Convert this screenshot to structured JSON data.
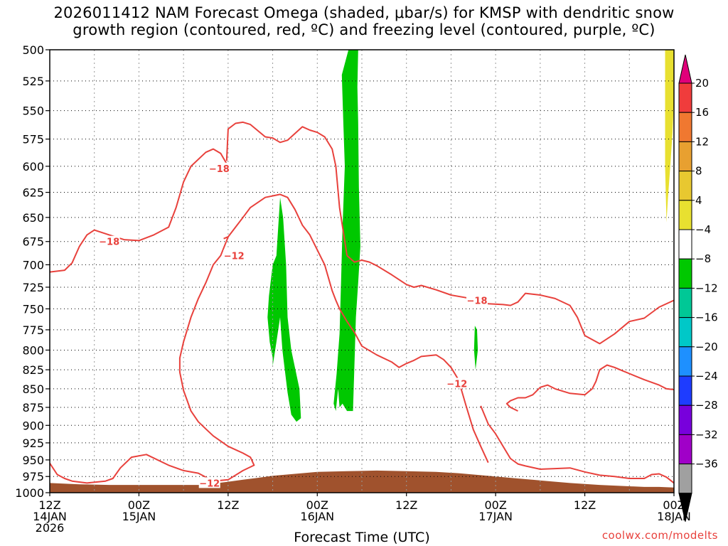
{
  "chart_data": {
    "type": "heatmap",
    "title_line1": "2026011412 NAM Forecast Omega (shaded, μbar/s) for KMSP with dendritic snow",
    "title_line2": "growth region (contoured, red, ºC) and freezing level (contoured, purple, ºC)",
    "xlabel": "Forecast Time (UTC)",
    "credit": "coolwx.com/modelts",
    "y_ticks": [
      "500",
      "525",
      "550",
      "575",
      "600",
      "625",
      "650",
      "675",
      "700",
      "725",
      "750",
      "775",
      "800",
      "825",
      "850",
      "875",
      "900",
      "925",
      "950",
      "975",
      "1000"
    ],
    "y_values": [
      500,
      525,
      550,
      575,
      600,
      625,
      650,
      675,
      700,
      725,
      750,
      775,
      800,
      825,
      850,
      875,
      900,
      925,
      950,
      975,
      1000
    ],
    "ylim": [
      1000,
      500
    ],
    "xlim_hours": [
      0,
      84
    ],
    "x_ticks": [
      {
        "hour": 0,
        "line1": "12Z",
        "line2": "14JAN",
        "line3": "2026"
      },
      {
        "hour": 12,
        "line1": "00Z",
        "line2": "15JAN",
        "line3": ""
      },
      {
        "hour": 24,
        "line1": "12Z",
        "line2": "",
        "line3": ""
      },
      {
        "hour": 36,
        "line1": "00Z",
        "line2": "16JAN",
        "line3": ""
      },
      {
        "hour": 48,
        "line1": "12Z",
        "line2": "",
        "line3": ""
      },
      {
        "hour": 60,
        "line1": "00Z",
        "line2": "17JAN",
        "line3": ""
      },
      {
        "hour": 72,
        "line1": "12Z",
        "line2": "",
        "line3": ""
      },
      {
        "hour": 84,
        "line1": "00Z",
        "line2": "18JAN",
        "line3": ""
      }
    ],
    "colorbar": {
      "levels": [
        "20",
        "16",
        "12",
        "8",
        "4",
        "−4",
        "−8",
        "−12",
        "−16",
        "−20",
        "−24",
        "−28",
        "−32",
        "−36"
      ],
      "colors": [
        "#f03c3c",
        "#f07830",
        "#e8a030",
        "#e8c830",
        "#e8e030",
        "#ffffff",
        "#00c800",
        "#00c896",
        "#00c8c8",
        "#1e90ff",
        "#1e3cff",
        "#7800dc",
        "#a000c8",
        "#a0a0a0"
      ],
      "top_color": "#e0007a",
      "bottom_color": "#000000"
    },
    "contour_labels": [
      {
        "text": "−18",
        "hour": 8.0,
        "p": 675
      },
      {
        "text": "−18",
        "hour": 22.8,
        "p": 602
      },
      {
        "text": "−12",
        "hour": 24.8,
        "p": 690
      },
      {
        "text": "−18",
        "hour": 57.5,
        "p": 740
      },
      {
        "text": "−12",
        "hour": 54.8,
        "p": 843
      },
      {
        "text": "−12",
        "hour": 21.5,
        "p": 985
      }
    ],
    "series": [
      {
        "name": "-18C contour (left)",
        "color": "#e8413c",
        "hour": [
          0,
          2,
          3,
          4,
          5,
          6,
          8,
          10,
          12,
          14,
          16,
          17,
          18,
          19,
          21,
          22,
          23,
          24,
          24.2
        ],
        "p": [
          708,
          706,
          698,
          680,
          668,
          663,
          668,
          673,
          674,
          668,
          660,
          640,
          615,
          600,
          587,
          584,
          588,
          600,
          603
        ]
      },
      {
        "name": "-18C contour (upper)",
        "color": "#e8413c",
        "hour": [
          23.8,
          24,
          25,
          26,
          27,
          29,
          30,
          31,
          32,
          33,
          34,
          35,
          36,
          37,
          38,
          38.5,
          39,
          40
        ],
        "p": [
          595,
          566,
          561,
          560,
          562,
          573,
          574,
          578,
          576,
          570,
          564,
          567,
          569,
          573,
          584,
          600,
          640,
          690
        ]
      },
      {
        "name": "-18C contour (right)",
        "color": "#e8413c",
        "hour": [
          40,
          41,
          42,
          43,
          44,
          46,
          48,
          49,
          50,
          52,
          54,
          56,
          57,
          59,
          61,
          62,
          63,
          64,
          66,
          68,
          70,
          71,
          72,
          74,
          76,
          78,
          80,
          82,
          84
        ],
        "p": [
          690,
          697,
          695,
          697,
          701,
          711,
          722,
          725,
          723,
          728,
          734,
          737,
          739,
          744,
          745,
          746,
          742,
          732,
          734,
          738,
          746,
          760,
          782,
          792,
          780,
          765,
          761,
          748,
          740
        ]
      },
      {
        "name": "-12C contour (main)",
        "color": "#e8413c",
        "hour": [
          23.4,
          24,
          25,
          26,
          27,
          29,
          31,
          32,
          33,
          34,
          35,
          37,
          38,
          38.5,
          39,
          40,
          41,
          42,
          44,
          46,
          47,
          48,
          49,
          50,
          52,
          53,
          54,
          55,
          56,
          57,
          58,
          59
        ],
        "p": [
          672,
          670,
          660,
          650,
          640,
          630,
          627,
          630,
          642,
          658,
          668,
          700,
          729,
          740,
          750,
          765,
          778,
          795,
          806,
          815,
          822,
          817,
          813,
          808,
          806,
          812,
          822,
          838,
          872,
          906,
          930,
          954
        ]
      },
      {
        "name": "-12C contour (mid)",
        "color": "#e8413c",
        "hour": [
          24,
          23,
          22,
          21,
          20,
          19,
          18,
          17.5,
          17.5,
          18,
          19,
          20,
          21,
          22,
          24,
          26,
          27,
          27.5,
          26,
          24,
          22,
          20,
          18,
          16,
          13,
          11,
          9.5,
          8.5,
          7.5,
          5,
          3,
          2,
          1,
          0
        ],
        "p": [
          670,
          690,
          700,
          720,
          738,
          760,
          790,
          810,
          828,
          852,
          880,
          895,
          905,
          915,
          930,
          940,
          946,
          958,
          966,
          980,
          982,
          970,
          966,
          958,
          942,
          946,
          962,
          978,
          982,
          985,
          982,
          978,
          972,
          955
        ]
      },
      {
        "name": "-12C contour (lower-right)",
        "color": "#e8413c",
        "hour": [
          63,
          62,
          61.5,
          62,
          63,
          64,
          65,
          66,
          67,
          68,
          70,
          72,
          73,
          73.5,
          74,
          75,
          76,
          77,
          78,
          80,
          82,
          83,
          84
        ],
        "p": [
          880,
          875,
          870,
          866,
          862,
          862,
          858,
          848,
          845,
          850,
          856,
          858,
          850,
          840,
          825,
          819,
          822,
          826,
          830,
          838,
          845,
          850,
          851
        ]
      },
      {
        "name": "-12C contour (bottom-right)",
        "color": "#e8413c",
        "hour": [
          58,
          59,
          60,
          61,
          62,
          63,
          64,
          66,
          68,
          70,
          72,
          74,
          76,
          78,
          80,
          81,
          82,
          83,
          84
        ],
        "p": [
          873,
          898,
          912,
          930,
          948,
          956,
          959,
          964,
          963,
          962,
          968,
          973,
          975,
          978,
          978,
          972,
          971,
          976,
          985
        ]
      }
    ],
    "omega_regions": [
      {
        "name": "yellow upper-right",
        "color": "#e8e030",
        "hour": [
          82.8,
          84,
          84,
          83.8,
          83.5,
          83.2,
          83.0,
          82.8
        ],
        "p": [
          500,
          500,
          540,
          570,
          600,
          630,
          655,
          600
        ]
      },
      {
        "name": "yellow thin column",
        "color": "#e8e030",
        "hour": [
          40.5,
          41.0,
          41.4,
          41.0,
          40.6,
          40.2,
          40.2,
          40.5
        ],
        "p": [
          590,
          640,
          700,
          750,
          740,
          700,
          640,
          590
        ]
      },
      {
        "name": "green tall column",
        "color": "#00c800",
        "hour": [
          40.2,
          40.8,
          41.5,
          41.4,
          41.5,
          41.6,
          41.8,
          41.5,
          41.2,
          41.0,
          40.8,
          40.2,
          40.0,
          39.4,
          39.0,
          38.8,
          38.5,
          38.2,
          38.6,
          39.0,
          39.2,
          39.4,
          39.7,
          39.5,
          39.3
        ],
        "p": [
          500,
          500,
          500,
          530,
          560,
          620,
          680,
          720,
          760,
          820,
          880,
          880,
          880,
          870,
          875,
          850,
          880,
          870,
          830,
          780,
          720,
          660,
          600,
          560,
          520
        ]
      },
      {
        "name": "green left column",
        "color": "#00c800",
        "hour": [
          30.5,
          31,
          31.4,
          31.8,
          32,
          32.5,
          33.6,
          33.8,
          33.2,
          32.5,
          32.0,
          31.3,
          31.0,
          30.5,
          30.0,
          30.0,
          29.6,
          29.3,
          29.5,
          30.0
        ],
        "p": [
          690,
          630,
          650,
          700,
          760,
          800,
          850,
          890,
          895,
          885,
          855,
          800,
          760,
          790,
          820,
          810,
          790,
          760,
          735,
          700
        ]
      },
      {
        "name": "green small right",
        "color": "#00c800",
        "hour": [
          57.2,
          57.5,
          57.6,
          57.3,
          57.1,
          57.2
        ],
        "p": [
          770,
          775,
          800,
          825,
          800,
          770
        ]
      }
    ],
    "terrain": {
      "color": "#a0522d",
      "hour": [
        0,
        4,
        8,
        12,
        16,
        20,
        22,
        24,
        26,
        28,
        30,
        33,
        36,
        40,
        44,
        48,
        52,
        55,
        58,
        62,
        66,
        70,
        74,
        78,
        80,
        82,
        84
      ],
      "p": [
        985,
        987,
        988,
        988,
        988,
        988,
        986,
        983,
        980,
        977,
        974,
        971,
        968,
        967,
        966,
        967,
        968,
        970,
        973,
        977,
        981,
        985,
        988,
        990,
        991,
        991,
        992
      ]
    }
  }
}
